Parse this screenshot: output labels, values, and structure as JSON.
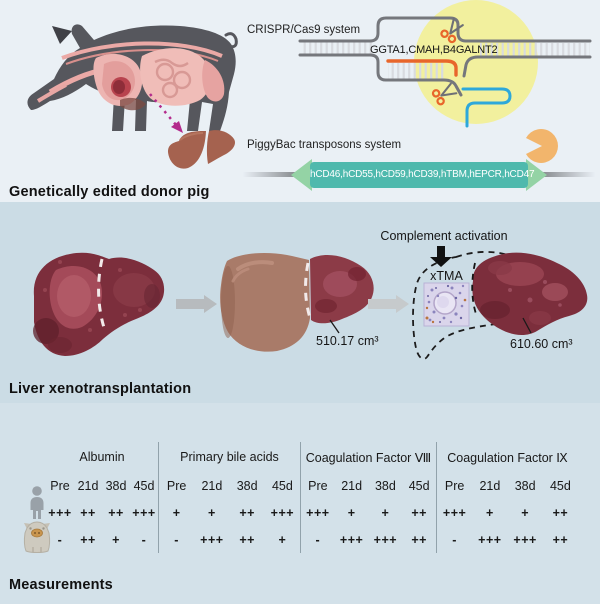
{
  "colors": {
    "bg_top": "#eaf0f5",
    "bg_middle": "#cbdce5",
    "bg_bottom": "#d3e1e9",
    "accent_teal": "#4fb9ad",
    "accent_green": "#94d3a5",
    "accent_yellow": "#f2f09e",
    "accent_orange": "#e8662b",
    "accent_blue": "#2ea8da",
    "accent_magenta": "#b32b8c",
    "pig_gray": "#56575d",
    "liver_dark_red": "#7c2e3c",
    "liver_brown": "#a97b69",
    "text": "#1c1c1c"
  },
  "top": {
    "section_label": "Genetically edited donor pig",
    "crispr_label": "CRISPR/Cas9 system",
    "genes": "GGTA1,CMAH,B4GALNT2",
    "piggybac_label": "PiggyBac transposons system",
    "cassette": "hCD46,hCD55,hCD59,hCD39,hTBM,hEPCR,hCD47"
  },
  "middle": {
    "section_label": "Liver xenotransplantation",
    "complement_label": "Complement activation",
    "xtma_label": "xTMA",
    "native_liver_volume": "510.17 cm³",
    "graft_liver_volume": "610.60 cm³"
  },
  "bottom": {
    "section_label": "Measurements",
    "timepoints": [
      "Pre",
      "21d",
      "38d",
      "45d"
    ],
    "row_labels": [
      "human",
      "pig"
    ],
    "groups": [
      {
        "title": "Albumin",
        "human": [
          "+++",
          "++",
          "++",
          "+++"
        ],
        "pig": [
          "-",
          "++",
          "+",
          "-"
        ]
      },
      {
        "title": "Primary bile acids",
        "human": [
          "+",
          "+",
          "++",
          "+++"
        ],
        "pig": [
          "-",
          "+++",
          "++",
          "+"
        ]
      },
      {
        "title": "Coagulation Factor Ⅷ",
        "human": [
          "+++",
          "+",
          "+",
          "++"
        ],
        "pig": [
          "-",
          "+++",
          "+++",
          "++"
        ]
      },
      {
        "title": "Coagulation Factor Ⅸ",
        "human": [
          "+++",
          "+",
          "+",
          "++"
        ],
        "pig": [
          "-",
          "+++",
          "+++",
          "++"
        ]
      }
    ]
  }
}
